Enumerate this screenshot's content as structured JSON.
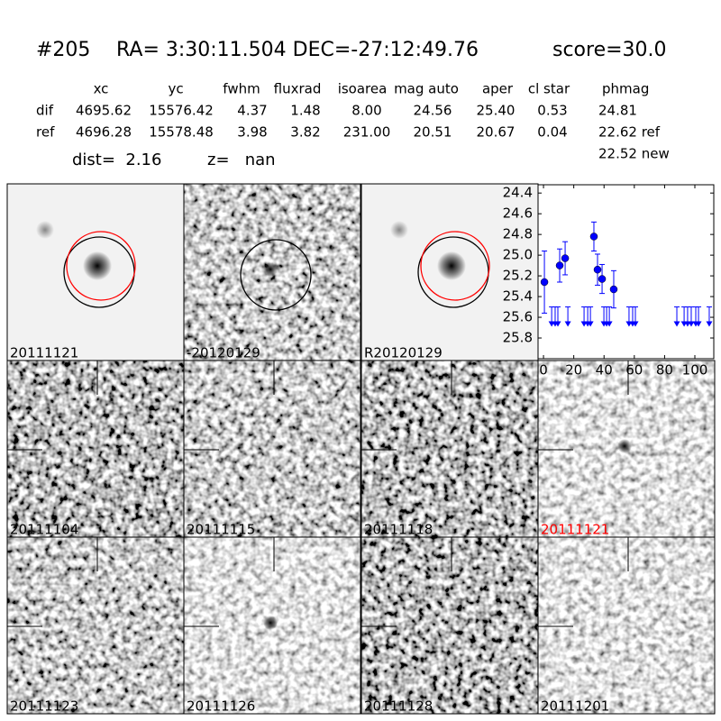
{
  "header": {
    "id": "#205",
    "coords": "RA= 3:30:11.504 DEC=-27:12:49.76",
    "score": "score=30.0"
  },
  "table": {
    "columns": [
      "xc",
      "yc",
      "fwhm",
      "fluxrad",
      "isoarea",
      "mag auto",
      "aper",
      "cl star",
      "phmag"
    ],
    "rows": [
      [
        "dif",
        "4695.62",
        "15576.42",
        "4.37",
        "1.48",
        "8.00",
        "24.56",
        "25.40",
        "0.53",
        "24.81"
      ],
      [
        "ref",
        "4696.28",
        "15578.48",
        "3.98",
        "3.82",
        "231.00",
        "20.51",
        "20.67",
        "0.04",
        "22.62 ref"
      ]
    ],
    "extra": "22.52 new"
  },
  "dist": "dist=  2.16",
  "z": "z=   nan",
  "panels": [
    {
      "label": "20111121"
    },
    {
      "label": "-20120129"
    },
    {
      "label": "R20120129"
    },
    {
      "label": "20111104"
    },
    {
      "label": "20111115"
    },
    {
      "label": "20111118"
    },
    {
      "label": "20111121",
      "label_color": "#ff0000"
    },
    {
      "label": "20111123"
    },
    {
      "label": "20111126"
    },
    {
      "label": "20111128"
    },
    {
      "label": "20111201"
    }
  ],
  "chart_data": {
    "type": "errorbar",
    "series": [
      {
        "color": "#0000ff",
        "marker": "o",
        "x": [
          0.6,
          10.7,
          14.3,
          33.3,
          35.7,
          38.7,
          46.4
        ],
        "values": [
          25.26,
          25.1,
          25.03,
          24.82,
          25.14,
          25.23,
          25.33
        ],
        "errors": [
          0.3,
          0.16,
          0.16,
          0.14,
          0.15,
          0.14,
          0.18
        ]
      },
      {
        "color": "#0000ff",
        "marker": "v",
        "upper_limit": true,
        "x": [
          5.4,
          7.7,
          9.5,
          16.1,
          26.8,
          29.2,
          31,
          39.9,
          41.7,
          43.5,
          56.5,
          58.9,
          60.7,
          88.1,
          92.9,
          95.2,
          97.6,
          100.6,
          102.4,
          109.5
        ],
        "values": [
          25.5,
          25.5,
          25.5,
          25.5,
          25.5,
          25.5,
          25.5,
          25.5,
          25.5,
          25.5,
          25.5,
          25.5,
          25.5,
          25.5,
          25.5,
          25.5,
          25.5,
          25.5,
          25.5,
          25.5
        ]
      }
    ],
    "xlim": [
      -3.6,
      112.5
    ],
    "xticks": [
      0,
      20,
      40,
      60,
      80,
      100
    ],
    "ylim": [
      26.0,
      24.32
    ],
    "yticks": [
      24.4,
      24.6,
      24.8,
      {
        "value": 25,
        "label": "25.0"
      },
      25.2,
      25.4,
      25.6,
      25.8
    ]
  }
}
